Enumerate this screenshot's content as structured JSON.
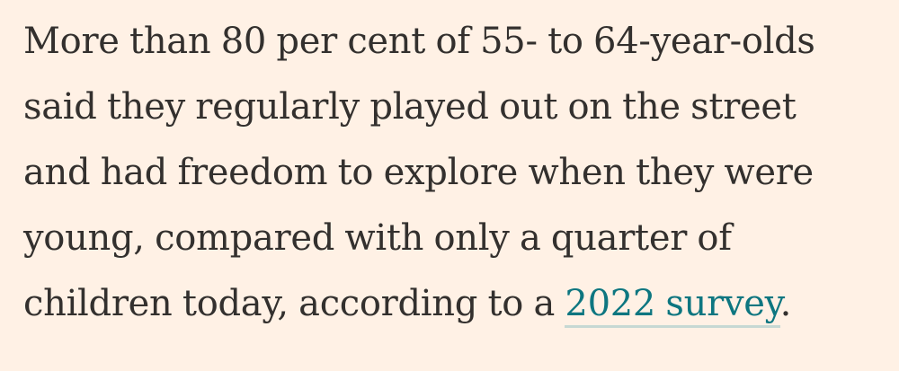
{
  "article": {
    "lines": [
      "More than 80 per cent of 55- to 64-year-olds",
      "said they regularly played out on the street",
      "and had freedom to explore when they were",
      "young, compared with only a quarter of",
      "children today, according to a "
    ],
    "link_text": "2022 survey",
    "trailing": "."
  },
  "colors": {
    "background": "#fff1e5",
    "text": "#33302e",
    "link": "#0d7680",
    "link_underline": "#c6d8d3"
  }
}
